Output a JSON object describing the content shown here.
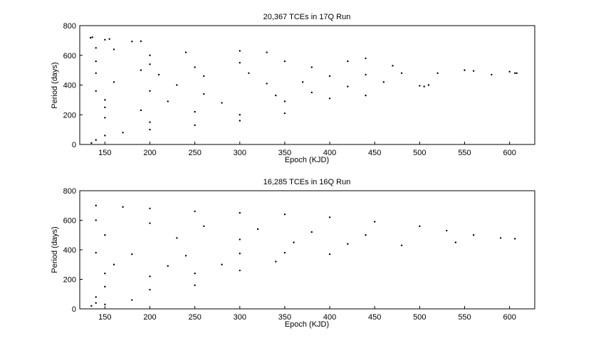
{
  "chart_data": [
    {
      "type": "scatter",
      "title": "20,367 TCEs in 17Q Run",
      "xlabel": "Epoch (KJD)",
      "ylabel": "Period (days)",
      "xlim": [
        122,
        628
      ],
      "ylim": [
        0,
        800
      ],
      "xticks": [
        150,
        200,
        250,
        300,
        350,
        400,
        450,
        500,
        550,
        600
      ],
      "yticks": [
        0,
        200,
        400,
        600,
        800
      ],
      "grid": false,
      "marker_color": "#000000",
      "series": [
        {
          "x_range": [
            131,
            610
          ],
          "y_range": [
            0,
            720
          ],
          "values": [
            [
              134,
              718
            ],
            [
              136,
              722
            ],
            [
              150,
              705
            ],
            [
              155,
              710
            ],
            [
              180,
              693
            ],
            [
              190,
              695
            ],
            [
              140,
              650
            ],
            [
              160,
              640
            ],
            [
              200,
              600
            ],
            [
              240,
              620
            ],
            [
              300,
              630
            ],
            [
              330,
              620
            ],
            [
              140,
              560
            ],
            [
              200,
              540
            ],
            [
              250,
              520
            ],
            [
              300,
              550
            ],
            [
              350,
              560
            ],
            [
              380,
              520
            ],
            [
              420,
              560
            ],
            [
              440,
              580
            ],
            [
              470,
              530
            ],
            [
              140,
              480
            ],
            [
              190,
              500
            ],
            [
              210,
              470
            ],
            [
              260,
              460
            ],
            [
              310,
              480
            ],
            [
              400,
              460
            ],
            [
              440,
              470
            ],
            [
              480,
              480
            ],
            [
              520,
              480
            ],
            [
              550,
              500
            ],
            [
              560,
              495
            ],
            [
              580,
              470
            ],
            [
              600,
              490
            ],
            [
              606,
              480
            ],
            [
              608,
              480
            ],
            [
              500,
              395
            ],
            [
              505,
              390
            ],
            [
              510,
              400
            ],
            [
              160,
              420
            ],
            [
              230,
              400
            ],
            [
              330,
              410
            ],
            [
              370,
              420
            ],
            [
              420,
              390
            ],
            [
              460,
              420
            ],
            [
              140,
              360
            ],
            [
              200,
              360
            ],
            [
              260,
              340
            ],
            [
              340,
              330
            ],
            [
              380,
              350
            ],
            [
              440,
              330
            ],
            [
              150,
              300
            ],
            [
              220,
              290
            ],
            [
              280,
              280
            ],
            [
              350,
              290
            ],
            [
              400,
              310
            ],
            [
              150,
              250
            ],
            [
              190,
              230
            ],
            [
              250,
              220
            ],
            [
              300,
              200
            ],
            [
              350,
              210
            ],
            [
              150,
              180
            ],
            [
              200,
              150
            ],
            [
              250,
              130
            ],
            [
              300,
              160
            ],
            [
              200,
              100
            ],
            [
              150,
              60
            ],
            [
              140,
              30
            ],
            [
              135,
              10
            ],
            [
              170,
              80
            ]
          ]
        }
      ]
    },
    {
      "type": "scatter",
      "title": "16,285 TCEs in 16Q Run",
      "xlabel": "Epoch (KJD)",
      "ylabel": "Period (days)",
      "xlim": [
        122,
        628
      ],
      "ylim": [
        0,
        800
      ],
      "xticks": [
        150,
        200,
        250,
        300,
        350,
        400,
        450,
        500,
        550,
        600
      ],
      "yticks": [
        0,
        200,
        400,
        600,
        800
      ],
      "grid": false,
      "marker_color": "#000000",
      "series": [
        {
          "x_range": [
            131,
            606
          ],
          "y_range": [
            0,
            705
          ],
          "values": [
            [
              140,
              700
            ],
            [
              170,
              690
            ],
            [
              200,
              680
            ],
            [
              250,
              660
            ],
            [
              300,
              650
            ],
            [
              350,
              640
            ],
            [
              400,
              620
            ],
            [
              450,
              590
            ],
            [
              500,
              560
            ],
            [
              530,
              530
            ],
            [
              560,
              500
            ],
            [
              590,
              480
            ],
            [
              606,
              475
            ],
            [
              140,
              600
            ],
            [
              200,
              580
            ],
            [
              260,
              560
            ],
            [
              320,
              540
            ],
            [
              380,
              520
            ],
            [
              440,
              500
            ],
            [
              150,
              500
            ],
            [
              230,
              480
            ],
            [
              300,
              470
            ],
            [
              360,
              450
            ],
            [
              420,
              440
            ],
            [
              480,
              430
            ],
            [
              540,
              450
            ],
            [
              140,
              380
            ],
            [
              180,
              370
            ],
            [
              240,
              360
            ],
            [
              300,
              375
            ],
            [
              350,
              380
            ],
            [
              400,
              370
            ],
            [
              160,
              300
            ],
            [
              220,
              290
            ],
            [
              280,
              300
            ],
            [
              340,
              320
            ],
            [
              150,
              240
            ],
            [
              200,
              220
            ],
            [
              250,
              240
            ],
            [
              300,
              260
            ],
            [
              150,
              150
            ],
            [
              200,
              130
            ],
            [
              250,
              160
            ],
            [
              140,
              80
            ],
            [
              180,
              60
            ],
            [
              135,
              20
            ],
            [
              140,
              40
            ],
            [
              150,
              30
            ]
          ]
        }
      ]
    }
  ]
}
